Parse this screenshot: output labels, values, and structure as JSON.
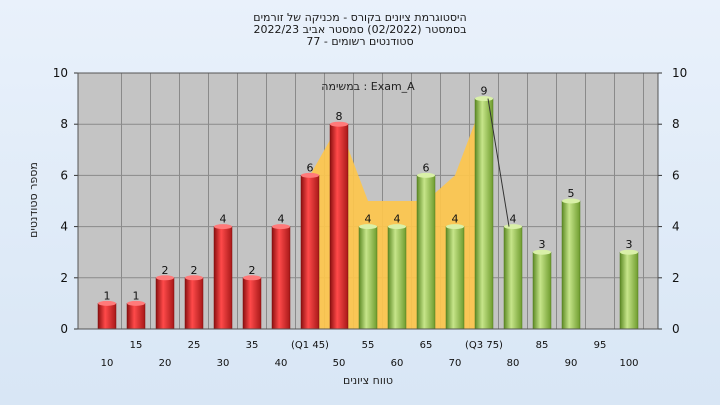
{
  "chart_data": {
    "type": "bar",
    "title_lines": [
      "היסטוגרמת ציונים בקורס - מכניקה של זורמים",
      "בסמסטר (02/2022) סמסטר אביב 2022/23",
      "סטודנטים רשומים - 77"
    ],
    "annotation": "במשימה : Exam_A",
    "xlabel": "טווח ציונים",
    "ylabel": "מספר סטודנטים",
    "ylim": [
      0,
      10
    ],
    "yticks": [
      0,
      2,
      4,
      6,
      8,
      10
    ],
    "grid": true,
    "bars": [
      {
        "x": 10,
        "label": "10",
        "value": 1,
        "group": "low"
      },
      {
        "x": 15,
        "label": "15",
        "value": 1,
        "group": "low"
      },
      {
        "x": 20,
        "label": "20",
        "value": 2,
        "group": "low"
      },
      {
        "x": 25,
        "label": "25",
        "value": 2,
        "group": "low"
      },
      {
        "x": 30,
        "label": "30",
        "value": 4,
        "group": "low"
      },
      {
        "x": 35,
        "label": "35",
        "value": 2,
        "group": "low"
      },
      {
        "x": 40,
        "label": "40",
        "value": 4,
        "group": "low"
      },
      {
        "x": 45,
        "label": "(Q1 45)",
        "value": 6,
        "group": "low"
      },
      {
        "x": 50,
        "label": "50",
        "value": 8,
        "group": "low"
      },
      {
        "x": 55,
        "label": "55",
        "value": 4,
        "group": "high"
      },
      {
        "x": 60,
        "label": "60",
        "value": 4,
        "group": "high"
      },
      {
        "x": 65,
        "label": "65",
        "value": 6,
        "group": "high"
      },
      {
        "x": 70,
        "label": "70",
        "value": 4,
        "group": "high"
      },
      {
        "x": 75,
        "label": "(Q3 75)",
        "value": 9,
        "group": "high"
      },
      {
        "x": 80,
        "label": "80",
        "value": 4,
        "group": "high"
      },
      {
        "x": 85,
        "label": "85",
        "value": 3,
        "group": "high"
      },
      {
        "x": 90,
        "label": "90",
        "value": 5,
        "group": "high"
      },
      {
        "x": 95,
        "label": "95",
        "value": 0,
        "group": "high"
      },
      {
        "x": 100,
        "label": "100",
        "value": 3,
        "group": "high"
      }
    ],
    "quartile_band": [
      {
        "x": 45,
        "value": 6
      },
      {
        "x": 50,
        "value": 8
      },
      {
        "x": 55,
        "value": 5
      },
      {
        "x": 60,
        "value": 5
      },
      {
        "x": 65,
        "value": 5
      },
      {
        "x": 70,
        "value": 6
      },
      {
        "x": 75,
        "value": 9
      }
    ],
    "colors": {
      "low": "#d42a2a",
      "high": "#8cbf3f",
      "band": "#ffc64a",
      "plot_bg": "#c4c4c4",
      "grid": "#8a8a8a"
    }
  }
}
